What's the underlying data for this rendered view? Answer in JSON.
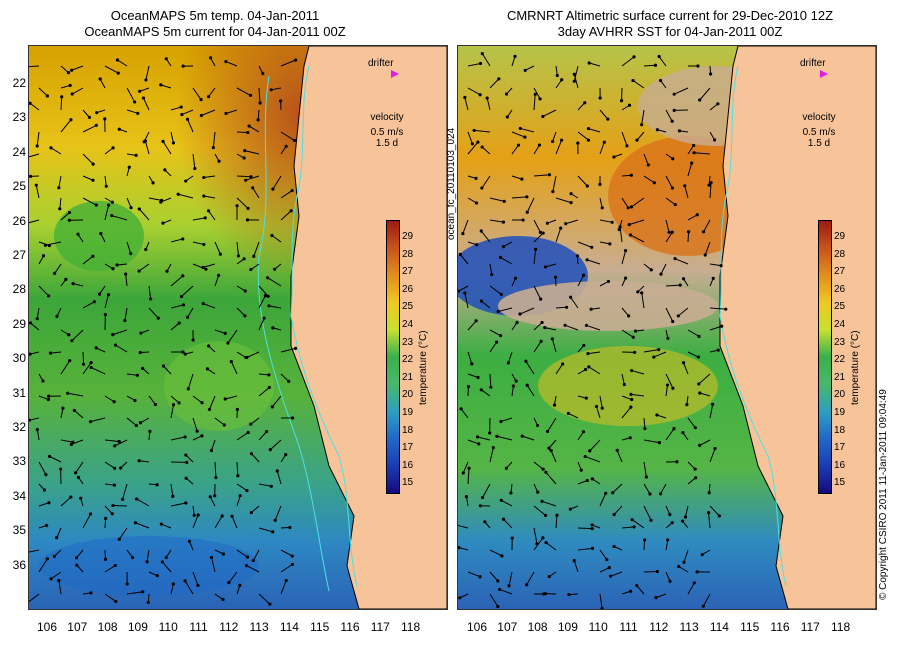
{
  "left_panel": {
    "title_line1": "OceanMAPS 5m temp. 04-Jan-2011",
    "title_line2": "OceanMAPS 5m current for 04-Jan-2011 00Z",
    "drifter_label": "drifter",
    "velocity_label": "velocity",
    "velocity_scale": "0.5 m/s",
    "velocity_time": "1.5 d",
    "colorbar_title": "temperature (°C)"
  },
  "right_panel": {
    "title_line1": "CMRNRT Altimetric surface current for 29-Dec-2010 12Z",
    "title_line2": "3day AVHRR SST for 04-Jan-2011 00Z",
    "drifter_label": "drifter",
    "velocity_label": "velocity",
    "velocity_scale": "0.5 m/s",
    "velocity_time": "1.5 d",
    "colorbar_title": "temperature (°C)"
  },
  "side_text": "ocean_fc_20110103_024",
  "copyright_text": "© Copyright CSIRO 2011   11-Jan-2011 09:04:49",
  "latitudes": [
    "22",
    "23",
    "24",
    "25",
    "26",
    "27",
    "28",
    "29",
    "30",
    "31",
    "32",
    "33",
    "34",
    "35",
    "36"
  ],
  "longitudes": [
    "106",
    "107",
    "108",
    "109",
    "110",
    "111",
    "112",
    "113",
    "114",
    "115",
    "116",
    "117",
    "118"
  ],
  "colorbar_ticks": [
    "29",
    "28",
    "27",
    "26",
    "25",
    "24",
    "23",
    "22",
    "21",
    "20",
    "19",
    "18",
    "17",
    "16",
    "15"
  ],
  "colors": {
    "land": "#f7c49a",
    "current_arrow": "#000000",
    "contour": "#4fe0e0",
    "drifter": "#e01ee0",
    "cloud": "#c8ad92"
  }
}
